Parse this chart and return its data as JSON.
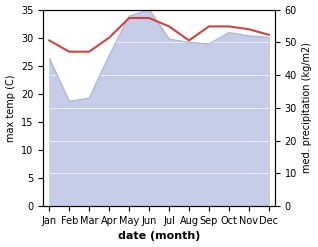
{
  "months": [
    "Jan",
    "Feb",
    "Mar",
    "Apr",
    "May",
    "Jun",
    "Jul",
    "Aug",
    "Sep",
    "Oct",
    "Nov",
    "Dec"
  ],
  "temp_max": [
    29.5,
    27.5,
    27.5,
    30.0,
    33.5,
    33.5,
    32.0,
    29.5,
    32.0,
    32.0,
    31.5,
    30.5
  ],
  "precip": [
    45.0,
    32.0,
    33.0,
    46.0,
    58.0,
    60.0,
    51.0,
    50.0,
    49.5,
    53.0,
    52.0,
    51.5
  ],
  "temp_color": "#cc4444",
  "precip_line_color": "#aab4d8",
  "precip_fill_color": "#c5cce8",
  "ylabel_left": "max temp (C)",
  "ylabel_right": "med. precipitation (kg/m2)",
  "xlabel": "date (month)",
  "ylim_left": [
    0,
    35
  ],
  "ylim_right": [
    0,
    60
  ],
  "yticks_left": [
    0,
    5,
    10,
    15,
    20,
    25,
    30,
    35
  ],
  "yticks_right": [
    0,
    10,
    20,
    30,
    40,
    50,
    60
  ],
  "background_color": "#f0f0f8"
}
